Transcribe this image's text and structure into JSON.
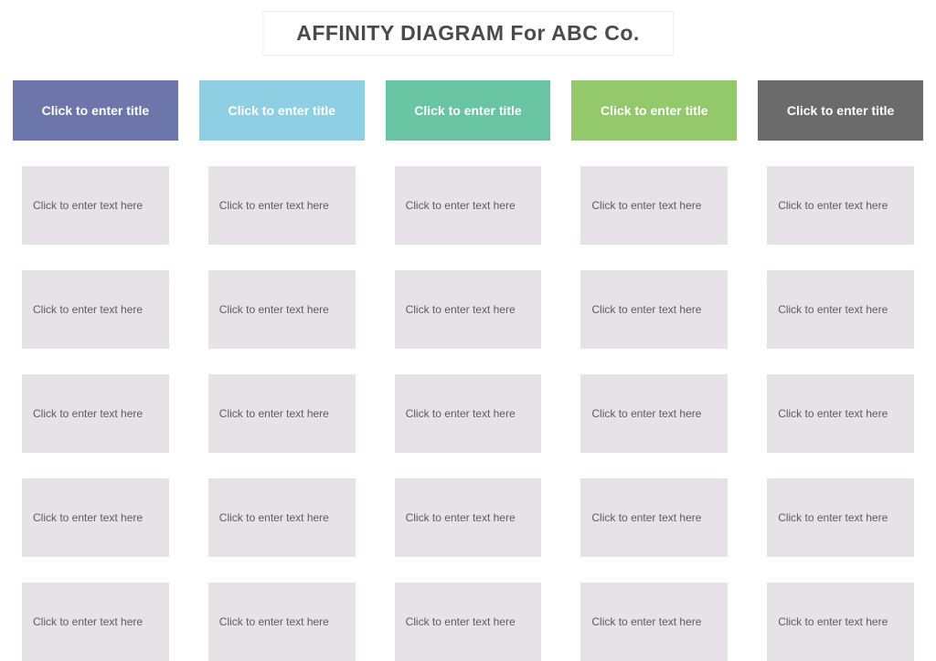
{
  "title": {
    "text": "AFFINITY DIAGRAM For ABC Co.",
    "color": "#4a4a4a"
  },
  "card_style": {
    "background_color": "#e7e2e8",
    "text_color": "#5c5c5c"
  },
  "columns": [
    {
      "header_bg": "#6d76ab",
      "header_text_color": "#ffffff",
      "header_label": "Click to enter title",
      "cards": [
        "Click to enter text here",
        "Click to enter text here",
        "Click to enter text here",
        "Click to enter text here",
        "Click to enter text here"
      ]
    },
    {
      "header_bg": "#8fcfe3",
      "header_text_color": "#ffffff",
      "header_label": "Click to enter title",
      "cards": [
        "Click to enter text here",
        "Click to enter text here",
        "Click to enter text here",
        "Click to enter text here",
        "Click to enter text here"
      ]
    },
    {
      "header_bg": "#68c4a3",
      "header_text_color": "#ffffff",
      "header_label": "Click to enter title",
      "cards": [
        "Click to enter text here",
        "Click to enter text here",
        "Click to enter text here",
        "Click to enter text here",
        "Click to enter text here"
      ]
    },
    {
      "header_bg": "#93c96a",
      "header_text_color": "#ffffff",
      "header_label": "Click to enter title",
      "cards": [
        "Click to enter text here",
        "Click to enter text here",
        "Click to enter text here",
        "Click to enter text here",
        "Click to enter text here"
      ]
    },
    {
      "header_bg": "#6b6b6b",
      "header_text_color": "#ffffff",
      "header_label": "Click to enter title",
      "cards": [
        "Click to enter text here",
        "Click to enter text here",
        "Click to enter text here",
        "Click to enter text here",
        "Click to enter text here"
      ]
    }
  ]
}
